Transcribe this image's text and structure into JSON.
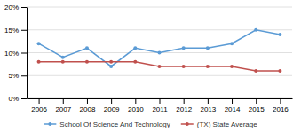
{
  "chart_data": {
    "type": "line",
    "x": [
      2006,
      2007,
      2008,
      2009,
      2010,
      2011,
      2012,
      2013,
      2014,
      2015,
      2016
    ],
    "series": [
      {
        "name": "School Of Science And Technology",
        "color": "#5b9bd5",
        "marker": "circle",
        "values": [
          12,
          9,
          11,
          7,
          11,
          10,
          11,
          11,
          12,
          15,
          14
        ]
      },
      {
        "name": "(TX) State Average",
        "color": "#c0504d",
        "marker": "circle",
        "values": [
          8,
          8,
          8,
          8,
          8,
          7,
          7,
          7,
          7,
          6,
          6
        ]
      }
    ],
    "xlim": [
      2005.5,
      2016.5
    ],
    "xticks": [
      2006,
      2007,
      2008,
      2009,
      2010,
      2011,
      2012,
      2013,
      2014,
      2015,
      2016
    ],
    "ylim": [
      0,
      20
    ],
    "yticks": [
      {
        "value": 0,
        "label": "0%"
      },
      {
        "value": 5,
        "label": "5%"
      },
      {
        "value": 10,
        "label": "10%"
      },
      {
        "value": 15,
        "label": "15%"
      },
      {
        "value": 20,
        "label": "20%"
      }
    ],
    "grid": true,
    "legend": "bottom"
  }
}
